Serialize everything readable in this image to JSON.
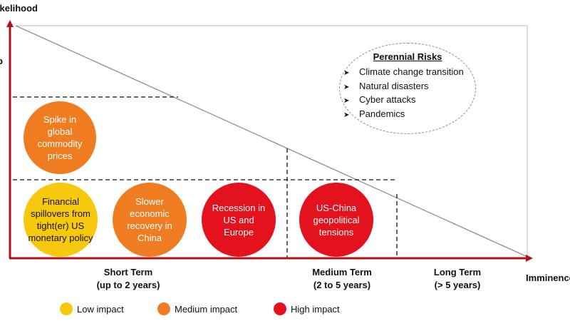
{
  "axes": {
    "y_label": "Likelihood",
    "x_label": "Imminence"
  },
  "colors": {
    "axis": "#b0121b",
    "low": "#f6c90e",
    "medium": "#f07c22",
    "high": "#e3121d",
    "gridline": "#111111"
  },
  "risks": {
    "spike_commodity": [
      "Spike in",
      "global",
      "commodity",
      "prices"
    ],
    "financial_spillovers": [
      "Financial",
      "spillovers from",
      "tight(er) US",
      "monetary policy"
    ],
    "slower_china": [
      "Slower",
      "economic",
      "recovery in",
      "China"
    ],
    "recession": [
      "Recession in",
      "US and",
      "Europe"
    ],
    "us_china": [
      "US-China",
      "geopolitical",
      "tensions"
    ]
  },
  "perennial": {
    "title": "Perennial Risks",
    "bullet_icon": "arrowhead-bullet-icon",
    "items": [
      "Climate change transition",
      "Natural disasters",
      "Cyber attacks",
      "Pandemics"
    ]
  },
  "terms": {
    "short": [
      "Short Term",
      "(up to 2 years)"
    ],
    "medium": [
      "Medium Term",
      "(2 to 5 years)"
    ],
    "long": [
      "Long Term",
      "(> 5 years)"
    ]
  },
  "legend": {
    "low": "Low impact",
    "medium": "Medium impact",
    "high": "High impact"
  }
}
